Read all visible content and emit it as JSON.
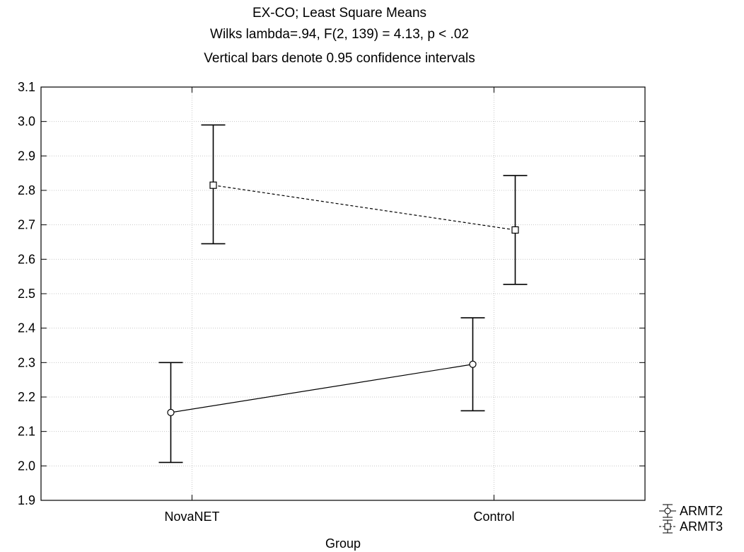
{
  "chart_data": {
    "type": "line",
    "title": "EX-CO; Least Square Means",
    "subtitle": "Wilks lambda=.94, F(2, 139) = 4.13, p < .02",
    "note": "Vertical bars denote 0.95 confidence intervals",
    "xlabel": "Group",
    "ylabel": "",
    "categories": [
      "NovaNET",
      "Control"
    ],
    "ylim": [
      1.9,
      3.1
    ],
    "yticks": [
      "1.9",
      "2.0",
      "2.1",
      "2.2",
      "2.3",
      "2.4",
      "2.5",
      "2.6",
      "2.7",
      "2.8",
      "2.9",
      "3.0",
      "3.1"
    ],
    "grid": true,
    "legend_position": "bottom-right",
    "series": [
      {
        "name": "ARMT2",
        "marker": "circle",
        "line_style": "solid",
        "values": [
          2.155,
          2.295
        ],
        "ci_low": [
          2.01,
          2.16
        ],
        "ci_high": [
          2.3,
          2.43
        ]
      },
      {
        "name": "ARMT3",
        "marker": "square",
        "line_style": "dashed",
        "values": [
          2.815,
          2.685
        ],
        "ci_low": [
          2.645,
          2.527
        ],
        "ci_high": [
          2.99,
          2.843
        ]
      }
    ]
  }
}
